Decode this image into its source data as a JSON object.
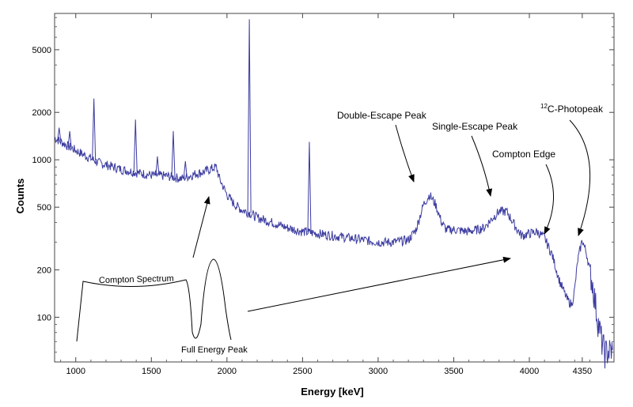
{
  "chart_data": {
    "type": "line",
    "title": "",
    "xlabel": "Energy [keV]",
    "ylabel": "Counts",
    "yscale": "log",
    "xlim": [
      860,
      4560
    ],
    "ylim": [
      52,
      8500
    ],
    "grid": false,
    "line_color": "#3b3ba0",
    "x_ticks": [
      {
        "value": 1000,
        "label": "1000"
      },
      {
        "value": 1500,
        "label": "1500"
      },
      {
        "value": 2000,
        "label": "2000"
      },
      {
        "value": 2500,
        "label": "2500"
      },
      {
        "value": 3000,
        "label": "3000"
      },
      {
        "value": 3500,
        "label": "3500"
      },
      {
        "value": 4000,
        "label": "4000"
      },
      {
        "value": 4350,
        "label": "4350"
      }
    ],
    "y_ticks": [
      {
        "value": 100,
        "label": "100"
      },
      {
        "value": 200,
        "label": "200"
      },
      {
        "value": 500,
        "label": "500"
      },
      {
        "value": 1000,
        "label": "1000"
      },
      {
        "value": 2000,
        "label": "2000"
      },
      {
        "value": 5000,
        "label": "5000"
      }
    ],
    "series": [
      {
        "name": "",
        "x": [
          860,
          950,
          1050,
          1100,
          1150,
          1200,
          1300,
          1400,
          1500,
          1600,
          1700,
          1800,
          1850,
          1900,
          1930,
          1950,
          2000,
          2050,
          2100,
          2150,
          2200,
          2300,
          2400,
          2500,
          2600,
          2700,
          2800,
          2900,
          3000,
          3100,
          3200,
          3250,
          3300,
          3340,
          3380,
          3420,
          3450,
          3500,
          3600,
          3700,
          3750,
          3800,
          3850,
          3880,
          3920,
          3950,
          4000,
          4050,
          4100,
          4150,
          4200,
          4250,
          4280,
          4300,
          4320,
          4350,
          4380,
          4420,
          4450,
          4480,
          4500,
          4550
        ],
        "y": [
          1380,
          1220,
          1080,
          1020,
          960,
          930,
          870,
          830,
          800,
          790,
          760,
          820,
          840,
          880,
          900,
          760,
          600,
          520,
          480,
          460,
          430,
          400,
          370,
          350,
          340,
          330,
          320,
          310,
          300,
          300,
          310,
          360,
          520,
          600,
          520,
          400,
          360,
          360,
          350,
          370,
          420,
          470,
          470,
          420,
          360,
          330,
          340,
          350,
          320,
          250,
          170,
          130,
          120,
          150,
          230,
          310,
          250,
          160,
          100,
          70,
          60,
          62
        ]
      }
    ],
    "peaks": [
      {
        "x": 1120,
        "y": 2450
      },
      {
        "x": 1395,
        "y": 1800
      },
      {
        "x": 1540,
        "y": 1050
      },
      {
        "x": 1645,
        "y": 1520
      },
      {
        "x": 1725,
        "y": 980
      },
      {
        "x": 2148,
        "y": 7800
      },
      {
        "x": 2545,
        "y": 1300
      },
      {
        "x": 890,
        "y": 1600
      },
      {
        "x": 960,
        "y": 1520
      }
    ],
    "annotations": [
      {
        "text": "Double-Escape Peak",
        "target_x": 3330,
        "target_y": 630
      },
      {
        "text": "Single-Escape Peak",
        "target_x": 3840,
        "target_y": 500
      },
      {
        "text": "Compton Edge",
        "target_x": 4200,
        "target_y": 280
      },
      {
        "text_super": "12",
        "text": "C-Photopeak",
        "target_x": 4415,
        "target_y": 280
      }
    ],
    "inset": {
      "labels": [
        "Compton Spectrum",
        "Full Energy Peak"
      ]
    }
  }
}
